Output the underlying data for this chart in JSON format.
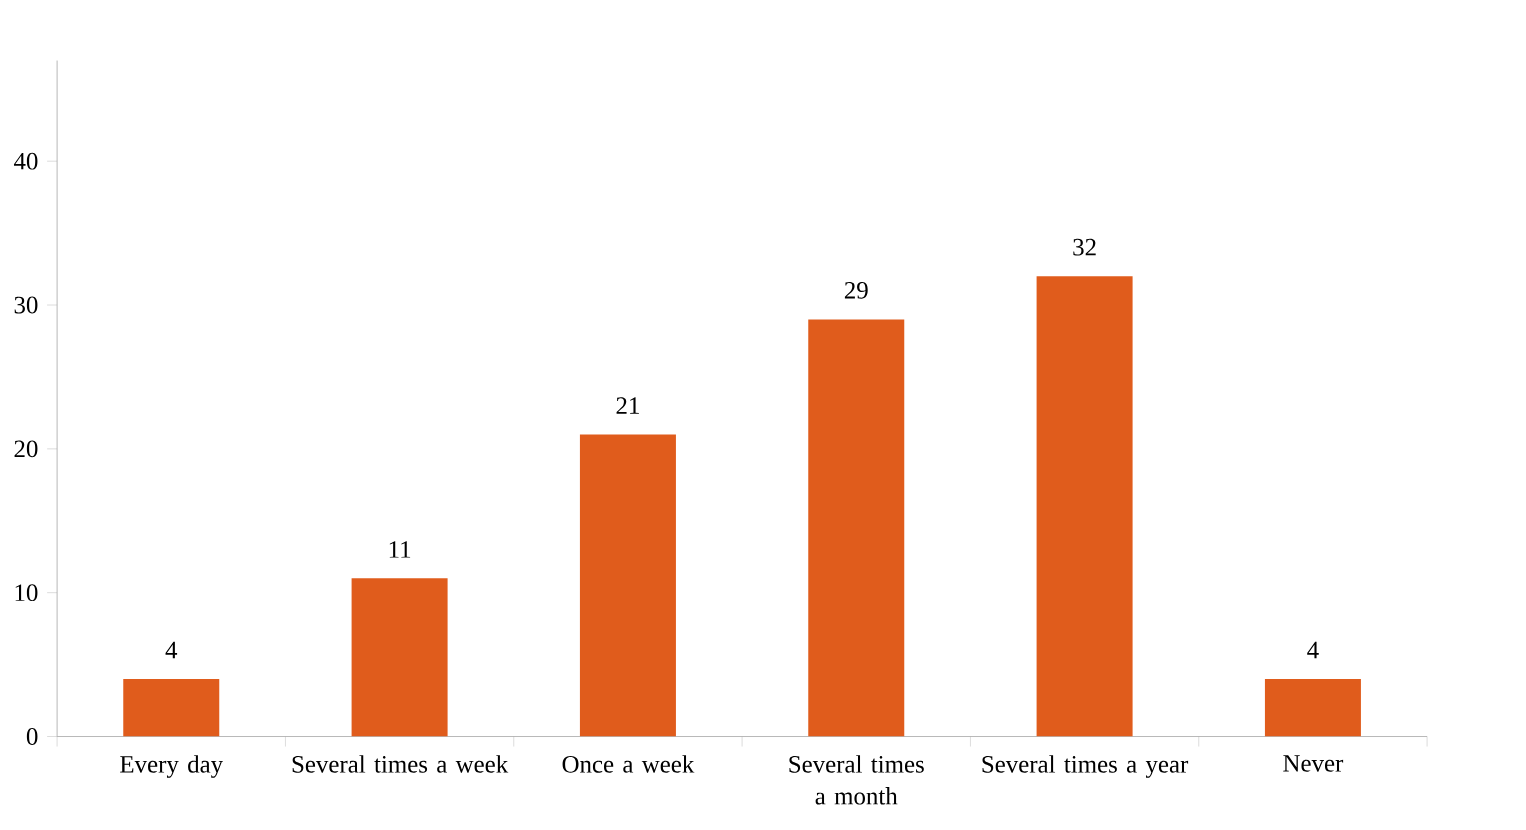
{
  "chart_data": {
    "type": "bar",
    "categories": [
      "Every day",
      "Several times a week",
      "Once a week",
      "Several times a month",
      "Several times a year",
      "Never"
    ],
    "values": [
      4,
      11,
      21,
      29,
      32,
      4
    ],
    "color": "#e05c1c",
    "ylim": [
      0,
      47
    ],
    "yticks": [
      0,
      10,
      20,
      30,
      40
    ],
    "data_labels": true
  }
}
